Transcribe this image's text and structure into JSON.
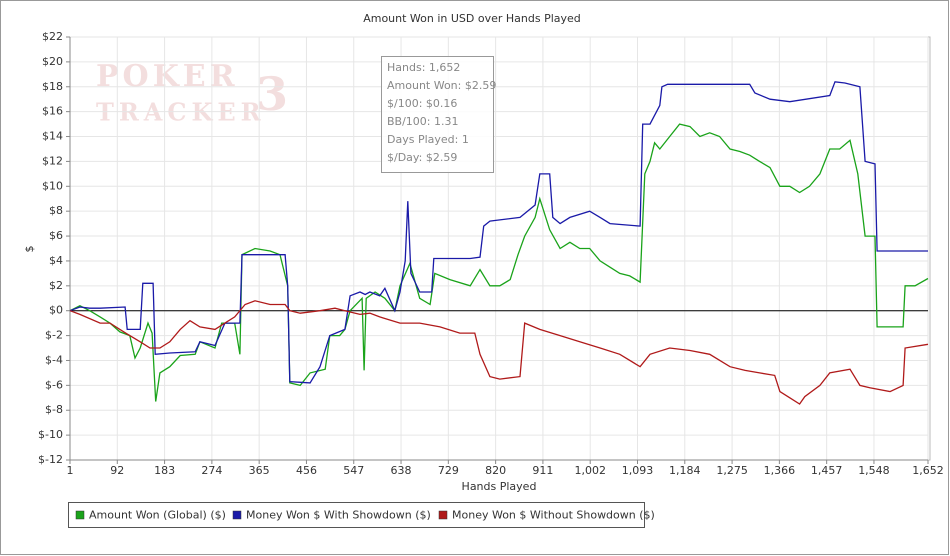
{
  "chart_data": {
    "type": "line",
    "title": "Amount Won in USD over Hands Played",
    "x_label": "Hands Played",
    "y_label": "$",
    "watermark": [
      "POKER",
      "TRACKER",
      "3"
    ],
    "tooltip": [
      "Hands: 1,652",
      "Amount Won: $2.59",
      "$/100: $0.16",
      "BB/100: 1.31",
      "Days Played: 1",
      "$/Day: $2.59"
    ],
    "xlim": [
      1,
      1652
    ],
    "xticks": [
      1,
      92,
      183,
      274,
      365,
      456,
      547,
      638,
      729,
      820,
      911,
      {
        "value": 1002,
        "label": "1,002"
      },
      {
        "value": 1093,
        "label": "1,093"
      },
      {
        "value": 1184,
        "label": "1,184"
      },
      {
        "value": 1275,
        "label": "1,275"
      },
      {
        "value": 1366,
        "label": "1,366"
      },
      {
        "value": 1457,
        "label": "1,457"
      },
      {
        "value": 1548,
        "label": "1,548"
      },
      {
        "value": 1652,
        "label": "1,652"
      }
    ],
    "ylim": [
      -12,
      22
    ],
    "yticks": [
      {
        "value": 22,
        "label": "$22"
      },
      {
        "value": 20,
        "label": "$20"
      },
      {
        "value": 18,
        "label": "$18"
      },
      {
        "value": 16,
        "label": "$16"
      },
      {
        "value": 14,
        "label": "$14"
      },
      {
        "value": 12,
        "label": "$12"
      },
      {
        "value": 10,
        "label": "$10"
      },
      {
        "value": 8,
        "label": "$8"
      },
      {
        "value": 6,
        "label": "$6"
      },
      {
        "value": 4,
        "label": "$4"
      },
      {
        "value": 2,
        "label": "$2"
      },
      {
        "value": 0,
        "label": "$0"
      },
      {
        "value": -2,
        "label": "$-2"
      },
      {
        "value": -4,
        "label": "$-4"
      },
      {
        "value": -6,
        "label": "$-6"
      },
      {
        "value": -8,
        "label": "$-8"
      },
      {
        "value": -10,
        "label": "$-10"
      },
      {
        "value": -12,
        "label": "$-12"
      }
    ],
    "grid": true,
    "series": [
      {
        "name": "Amount Won (Global) ($)",
        "color": "#1aa31a",
        "x": [
          1,
          20,
          39,
          59,
          78,
          97,
          116,
          126,
          136,
          151,
          159,
          166,
          174,
          193,
          213,
          242,
          251,
          280,
          293,
          318,
          328,
          332,
          357,
          386,
          405,
          420,
          424,
          444,
          463,
          492,
          501,
          520,
          530,
          540,
          563,
          567,
          571,
          588,
          607,
          626,
          636,
          655,
          674,
          694,
          703,
          732,
          771,
          790,
          809,
          828,
          848,
          863,
          876,
          896,
          905,
          924,
          944,
          963,
          982,
          1001,
          1021,
          1040,
          1059,
          1078,
          1098,
          1107,
          1117,
          1126,
          1136,
          1155,
          1174,
          1194,
          1213,
          1232,
          1251,
          1271,
          1290,
          1309,
          1328,
          1348,
          1367,
          1386,
          1405,
          1424,
          1444,
          1463,
          1482,
          1502,
          1517,
          1531,
          1550,
          1554,
          1579,
          1604,
          1608,
          1627,
          1652
        ],
        "values": [
          0,
          0.4,
          0,
          -0.5,
          -1,
          -1.7,
          -2,
          -3.8,
          -3,
          -1,
          -1.8,
          -7.3,
          -5,
          -4.5,
          -3.6,
          -3.5,
          -2.5,
          -3,
          -1,
          -1,
          -3.5,
          4.5,
          5,
          4.8,
          4.5,
          2,
          -5.8,
          -6,
          -5,
          -4.7,
          -2,
          -2,
          -1.5,
          0,
          1,
          -4.8,
          1,
          1.5,
          1,
          0,
          2,
          3.8,
          1,
          0.5,
          3,
          2.5,
          2,
          3.3,
          2,
          2,
          2.5,
          4.5,
          6,
          7.5,
          9,
          6.5,
          5,
          5.5,
          5,
          5,
          4,
          3.5,
          3,
          2.8,
          2.3,
          11,
          12,
          13.5,
          13,
          14,
          15,
          14.8,
          14,
          14.3,
          14,
          13,
          12.8,
          12.5,
          12,
          11.5,
          10,
          10,
          9.5,
          10,
          11,
          13,
          13,
          13.7,
          11,
          6,
          6,
          -1.3,
          -1.3,
          -1.3,
          2,
          2,
          2.59
        ]
      },
      {
        "name": "Money Won $ With Showdown ($)",
        "color": "#1a1aa8",
        "x": [
          1,
          20,
          39,
          59,
          107,
          111,
          136,
          141,
          161,
          165,
          193,
          242,
          251,
          280,
          299,
          328,
          332,
          415,
          420,
          424,
          463,
          482,
          501,
          530,
          540,
          559,
          569,
          578,
          597,
          607,
          626,
          636,
          646,
          651,
          657,
          674,
          697,
          701,
          771,
          790,
          797,
          809,
          828,
          867,
          896,
          905,
          924,
          930,
          944,
          963,
          1001,
          1021,
          1040,
          1098,
          1103,
          1117,
          1136,
          1140,
          1151,
          1309,
          1319,
          1348,
          1386,
          1463,
          1473,
          1492,
          1521,
          1531,
          1550,
          1554,
          1652
        ],
        "values": [
          0,
          0.3,
          0.2,
          0.2,
          0.3,
          -1.5,
          -1.5,
          2.2,
          2.2,
          -3.5,
          -3.4,
          -3.3,
          -2.5,
          -2.8,
          -1,
          -1,
          4.5,
          4.5,
          2,
          -5.7,
          -5.8,
          -4.5,
          -2,
          -1.5,
          1.2,
          1.5,
          1.3,
          1.5,
          1.2,
          1.8,
          0,
          1.5,
          4,
          8.8,
          3,
          1.5,
          1.5,
          4.2,
          4.2,
          4.3,
          6.8,
          7.2,
          7.3,
          7.5,
          8.5,
          11,
          11,
          7.5,
          7,
          7.5,
          8,
          7.5,
          7,
          6.8,
          15,
          15,
          16.5,
          18,
          18.2,
          18.2,
          17.5,
          17,
          16.8,
          17.3,
          18.4,
          18.3,
          18,
          12,
          11.8,
          4.8,
          4.8
        ]
      },
      {
        "name": "Money Won $ Without Showdown ($)",
        "color": "#b01a1a",
        "x": [
          1,
          20,
          59,
          78,
          97,
          116,
          136,
          155,
          174,
          193,
          213,
          232,
          251,
          280,
          299,
          318,
          338,
          357,
          386,
          415,
          424,
          444,
          482,
          511,
          530,
          559,
          578,
          597,
          636,
          674,
          713,
          751,
          780,
          790,
          809,
          828,
          867,
          876,
          905,
          944,
          982,
          1021,
          1059,
          1098,
          1117,
          1155,
          1194,
          1232,
          1271,
          1300,
          1328,
          1357,
          1367,
          1386,
          1405,
          1415,
          1444,
          1463,
          1502,
          1521,
          1540,
          1579,
          1604,
          1608,
          1652
        ],
        "values": [
          0,
          -0.3,
          -1,
          -1,
          -1.5,
          -2,
          -2.5,
          -3,
          -3,
          -2.5,
          -1.5,
          -0.8,
          -1.3,
          -1.5,
          -1,
          -0.5,
          0.5,
          0.8,
          0.5,
          0.5,
          0,
          -0.2,
          0,
          0.2,
          0,
          -0.3,
          -0.2,
          -0.5,
          -1,
          -1,
          -1.3,
          -1.8,
          -1.8,
          -3.5,
          -5.3,
          -5.5,
          -5.3,
          -1,
          -1.5,
          -2,
          -2.5,
          -3,
          -3.5,
          -4.5,
          -3.5,
          -3,
          -3.2,
          -3.5,
          -4.5,
          -4.8,
          -5,
          -5.2,
          -6.5,
          -7,
          -7.5,
          -6.9,
          -6,
          -5,
          -4.7,
          -6,
          -6.2,
          -6.5,
          -6,
          -3,
          -2.7
        ]
      }
    ]
  }
}
